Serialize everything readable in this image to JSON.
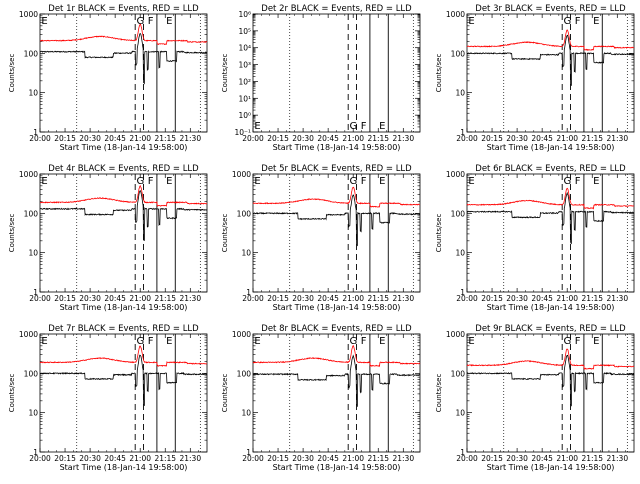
{
  "common": {
    "xlabel": "Start Time (18-Jan-14 19:58:00)",
    "ylabel": "Counts/sec",
    "x_ticks": [
      "20:00",
      "20:15",
      "20:30",
      "20:45",
      "21:00",
      "21:15",
      "21:30"
    ],
    "x_tick_minutes": [
      0,
      15,
      30,
      45,
      60,
      75,
      90
    ],
    "xlim_minutes": [
      0,
      100
    ],
    "dotted_lines_minutes": [
      22,
      96
    ],
    "dashed_lines_minutes": [
      57,
      62
    ],
    "solid_lines_minutes": [
      70,
      81
    ],
    "events_color": "#000000",
    "lld_color": "#ff0000",
    "marker_letters": {
      "E": "E",
      "F": "F",
      "G": "G"
    }
  },
  "chart_data": [
    {
      "id": "p1",
      "type": "line",
      "title": "Det 1r BLACK = Events, RED = LLD",
      "yscale": "log",
      "ylim": [
        1,
        1000
      ],
      "y_tick_values": [
        1,
        10,
        100,
        1000
      ],
      "y_tick_labels": [
        "1",
        "10",
        "100",
        "1000"
      ],
      "events_level": 110,
      "lld_level": 210,
      "empty": false
    },
    {
      "id": "p2",
      "type": "line",
      "title": "Det 2r BLACK = Events, RED = LLD",
      "yscale": "log",
      "ylim": [
        0.1,
        1000000
      ],
      "y_tick_values": [
        0.1,
        1,
        10,
        100,
        1000,
        10000,
        100000,
        1000000
      ],
      "y_tick_labels": [
        "10⁻¹",
        "10⁰",
        "10¹",
        "10²",
        "10³",
        "10⁴",
        "10⁵",
        "10⁶"
      ],
      "events_level": null,
      "lld_level": null,
      "empty": true
    },
    {
      "id": "p3",
      "type": "line",
      "title": "Det 3r BLACK = Events, RED = LLD",
      "yscale": "log",
      "ylim": [
        1,
        1000
      ],
      "y_tick_values": [
        1,
        10,
        100,
        1000
      ],
      "y_tick_labels": [
        "1",
        "10",
        "100",
        "1000"
      ],
      "events_level": 100,
      "lld_level": 150,
      "empty": false
    },
    {
      "id": "p4",
      "type": "line",
      "title": "Det 4r BLACK = Events, RED = LLD",
      "yscale": "log",
      "ylim": [
        1,
        1000
      ],
      "y_tick_values": [
        1,
        10,
        100,
        1000
      ],
      "y_tick_labels": [
        "1",
        "10",
        "100",
        "1000"
      ],
      "events_level": 130,
      "lld_level": 190,
      "empty": false
    },
    {
      "id": "p5",
      "type": "line",
      "title": "Det 5r BLACK = Events, RED = LLD",
      "yscale": "log",
      "ylim": [
        1,
        1000
      ],
      "y_tick_values": [
        1,
        10,
        100,
        1000
      ],
      "y_tick_labels": [
        "1",
        "10",
        "100",
        "1000"
      ],
      "events_level": 100,
      "lld_level": 180,
      "empty": false
    },
    {
      "id": "p6",
      "type": "line",
      "title": "Det 6r BLACK = Events, RED = LLD",
      "yscale": "log",
      "ylim": [
        1,
        1000
      ],
      "y_tick_values": [
        1,
        10,
        100,
        1000
      ],
      "y_tick_labels": [
        "1",
        "10",
        "100",
        "1000"
      ],
      "events_level": 110,
      "lld_level": 165,
      "empty": false
    },
    {
      "id": "p7",
      "type": "line",
      "title": "Det 7r BLACK = Events, RED = LLD",
      "yscale": "log",
      "ylim": [
        1,
        1000
      ],
      "y_tick_values": [
        1,
        10,
        100,
        1000
      ],
      "y_tick_labels": [
        "1",
        "10",
        "100",
        "1000"
      ],
      "events_level": 100,
      "lld_level": 190,
      "empty": false
    },
    {
      "id": "p8",
      "type": "line",
      "title": "Det 8r BLACK = Events, RED = LLD",
      "yscale": "log",
      "ylim": [
        1,
        1000
      ],
      "y_tick_values": [
        1,
        10,
        100,
        1000
      ],
      "y_tick_labels": [
        "1",
        "10",
        "100",
        "1000"
      ],
      "events_level": 95,
      "lld_level": 190,
      "empty": false
    },
    {
      "id": "p9",
      "type": "line",
      "title": "Det 9r BLACK = Events, RED = LLD",
      "yscale": "log",
      "ylim": [
        1,
        1000
      ],
      "y_tick_values": [
        1,
        10,
        100,
        1000
      ],
      "y_tick_labels": [
        "1",
        "10",
        "100",
        "1000"
      ],
      "events_level": 100,
      "lld_level": 160,
      "empty": false
    }
  ]
}
